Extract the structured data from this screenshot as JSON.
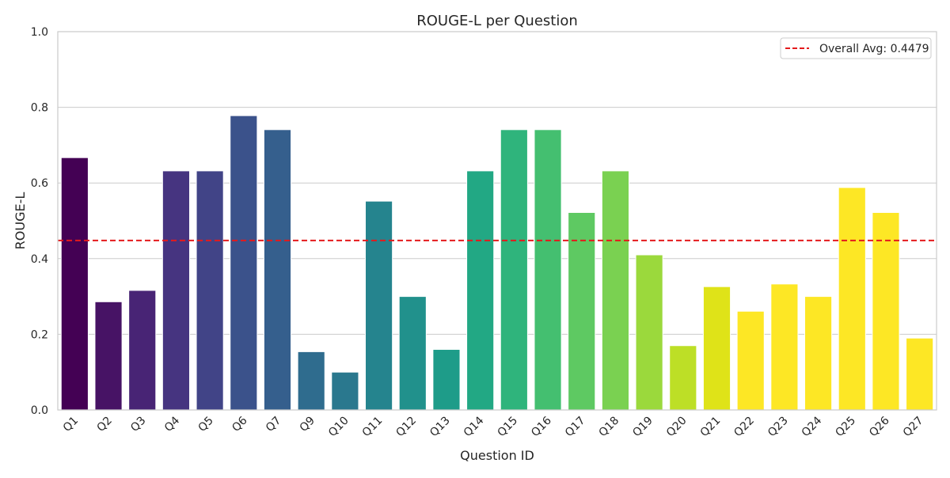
{
  "chart_data": {
    "type": "bar",
    "title": "ROUGE-L per Question",
    "xlabel": "Question ID",
    "ylabel": "ROUGE-L",
    "ylim": [
      0,
      1.0
    ],
    "yticks": [
      "0.0",
      "0.2",
      "0.4",
      "0.6",
      "0.8",
      "1.0"
    ],
    "grid": "horizontal",
    "categories": [
      "Q1",
      "Q2",
      "Q3",
      "Q4",
      "Q5",
      "Q6",
      "Q7",
      "Q9",
      "Q10",
      "Q11",
      "Q12",
      "Q13",
      "Q14",
      "Q15",
      "Q16",
      "Q17",
      "Q18",
      "Q19",
      "Q20",
      "Q21",
      "Q22",
      "Q23",
      "Q24",
      "Q25",
      "Q26",
      "Q27"
    ],
    "values": [
      0.667,
      0.286,
      0.316,
      0.632,
      0.632,
      0.778,
      0.741,
      0.154,
      0.1,
      0.552,
      0.3,
      0.16,
      0.632,
      0.741,
      0.741,
      0.522,
      0.632,
      0.41,
      0.17,
      0.326,
      0.261,
      0.333,
      0.3,
      0.588,
      0.522,
      0.19
    ],
    "colors": [
      "#440154",
      "#471365",
      "#482475",
      "#463480",
      "#414487",
      "#3b528b",
      "#355f8d",
      "#2f6c8e",
      "#2a788e",
      "#25848e",
      "#21918c",
      "#1e9c89",
      "#22a884",
      "#2fb47c",
      "#44bf70",
      "#5ec962",
      "#7ad151",
      "#9bd93c",
      "#bddf26",
      "#dfe318",
      "#fde725",
      "#fde725",
      "#fde725",
      "#fde725",
      "#fde725",
      "#fde725"
    ],
    "reference_line": {
      "label": "Overall Avg: 0.4479",
      "value": 0.4479,
      "color": "#e41a1c",
      "style": "dashed"
    },
    "legend_position": "top-right"
  }
}
